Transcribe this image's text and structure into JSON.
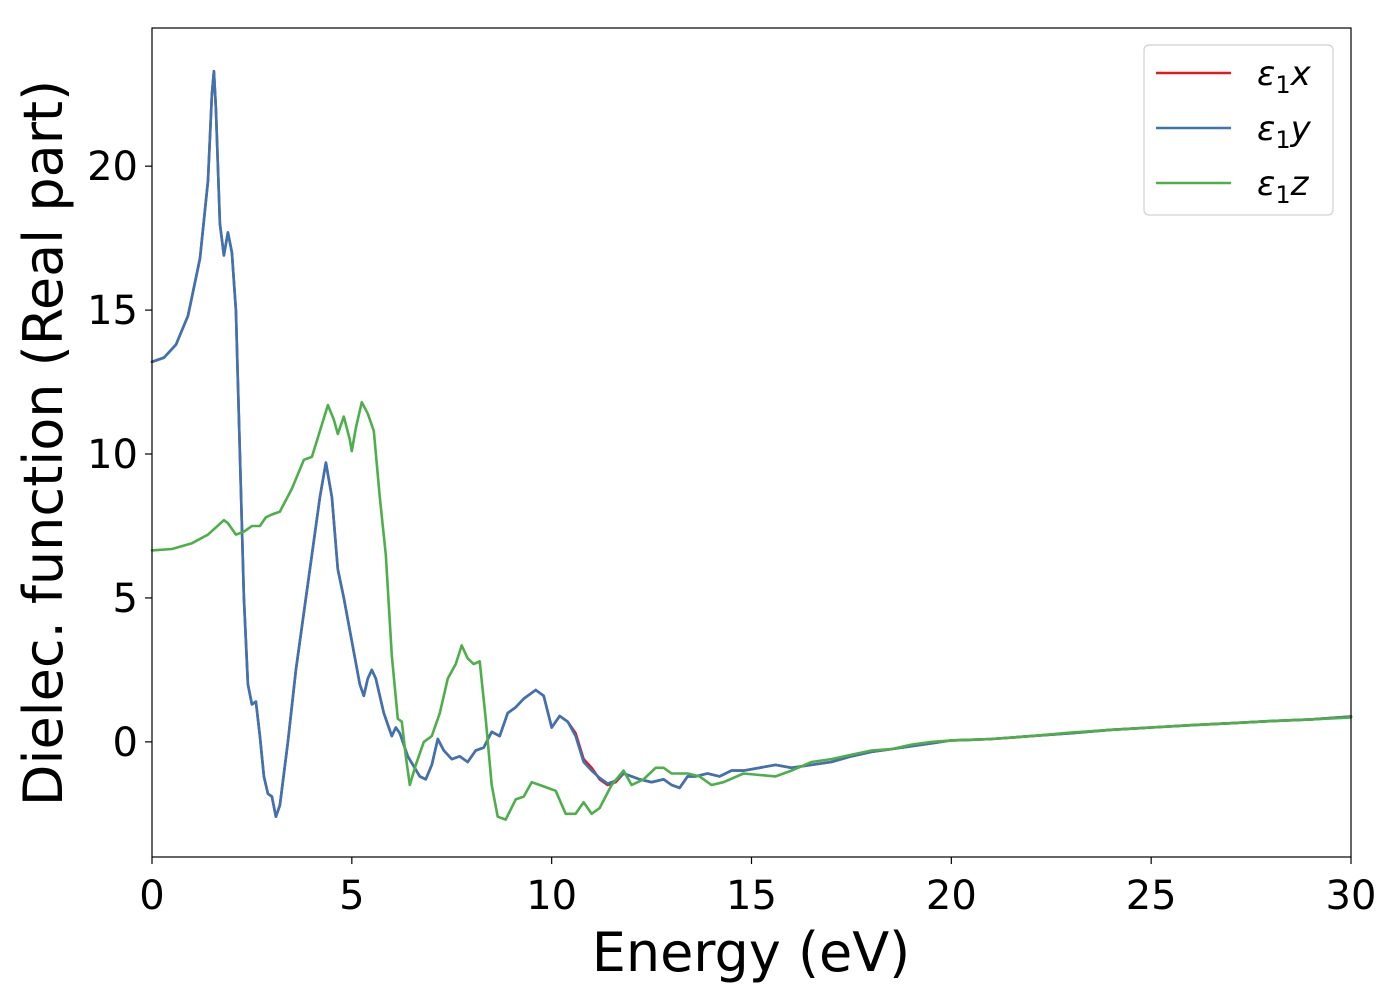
{
  "chart_data": {
    "type": "line",
    "xlabel": "Energy (eV)",
    "ylabel": "Dielec. function (Real part)",
    "xlim": [
      0,
      30
    ],
    "ylim": [
      -4,
      24.8
    ],
    "xticks": [
      0,
      5,
      10,
      15,
      20,
      25,
      30
    ],
    "xtick_labels": [
      "0",
      "5",
      "10",
      "15",
      "20",
      "25",
      "30"
    ],
    "yticks": [
      0,
      5,
      10,
      15,
      20
    ],
    "ytick_labels": [
      "0",
      "5",
      "10",
      "15",
      "20"
    ],
    "grid": false,
    "legend_position": "top-right",
    "series": [
      {
        "name": "ε1x",
        "color": "#e41a1c",
        "points": [
          [
            0,
            13.2
          ],
          [
            0.3,
            13.35
          ],
          [
            0.6,
            13.8
          ],
          [
            0.9,
            14.8
          ],
          [
            1.2,
            16.8
          ],
          [
            1.4,
            19.5
          ],
          [
            1.5,
            22.5
          ],
          [
            1.55,
            23.3
          ],
          [
            1.6,
            22.0
          ],
          [
            1.7,
            18.0
          ],
          [
            1.8,
            16.9
          ],
          [
            1.9,
            17.7
          ],
          [
            2.0,
            17.0
          ],
          [
            2.1,
            15.0
          ],
          [
            2.2,
            10.0
          ],
          [
            2.3,
            5.0
          ],
          [
            2.4,
            2.0
          ],
          [
            2.5,
            1.3
          ],
          [
            2.6,
            1.4
          ],
          [
            2.7,
            0.2
          ],
          [
            2.8,
            -1.2
          ],
          [
            2.9,
            -1.8
          ],
          [
            3.0,
            -1.9
          ],
          [
            3.1,
            -2.6
          ],
          [
            3.2,
            -2.2
          ],
          [
            3.4,
            0.0
          ],
          [
            3.6,
            2.5
          ],
          [
            3.8,
            4.5
          ],
          [
            4.0,
            6.5
          ],
          [
            4.2,
            8.5
          ],
          [
            4.35,
            9.7
          ],
          [
            4.5,
            8.5
          ],
          [
            4.65,
            6.0
          ],
          [
            4.8,
            5.0
          ],
          [
            5.0,
            3.5
          ],
          [
            5.2,
            2.0
          ],
          [
            5.3,
            1.6
          ],
          [
            5.4,
            2.2
          ],
          [
            5.5,
            2.5
          ],
          [
            5.6,
            2.2
          ],
          [
            5.8,
            1.0
          ],
          [
            6.0,
            0.2
          ],
          [
            6.1,
            0.5
          ],
          [
            6.2,
            0.3
          ],
          [
            6.4,
            -0.5
          ],
          [
            6.7,
            -1.2
          ],
          [
            6.85,
            -1.3
          ],
          [
            7.0,
            -0.8
          ],
          [
            7.15,
            0.1
          ],
          [
            7.3,
            -0.3
          ],
          [
            7.5,
            -0.6
          ],
          [
            7.7,
            -0.5
          ],
          [
            7.9,
            -0.7
          ],
          [
            8.1,
            -0.3
          ],
          [
            8.3,
            -0.2
          ],
          [
            8.5,
            0.35
          ],
          [
            8.7,
            0.2
          ],
          [
            8.9,
            1.0
          ],
          [
            9.1,
            1.2
          ],
          [
            9.3,
            1.5
          ],
          [
            9.6,
            1.8
          ],
          [
            9.8,
            1.6
          ],
          [
            10.0,
            0.5
          ],
          [
            10.2,
            0.9
          ],
          [
            10.4,
            0.7
          ],
          [
            10.6,
            0.3
          ],
          [
            10.8,
            -0.6
          ],
          [
            11.0,
            -0.9
          ],
          [
            11.2,
            -1.3
          ],
          [
            11.4,
            -1.5
          ],
          [
            11.6,
            -1.4
          ],
          [
            11.8,
            -1.1
          ],
          [
            12.0,
            -1.2
          ],
          [
            12.2,
            -1.3
          ],
          [
            12.5,
            -1.4
          ],
          [
            12.8,
            -1.3
          ],
          [
            13.0,
            -1.5
          ],
          [
            13.2,
            -1.6
          ],
          [
            13.4,
            -1.2
          ],
          [
            13.6,
            -1.2
          ],
          [
            13.9,
            -1.1
          ],
          [
            14.2,
            -1.2
          ],
          [
            14.5,
            -1.0
          ],
          [
            14.8,
            -1.0
          ],
          [
            15.2,
            -0.9
          ],
          [
            15.6,
            -0.8
          ],
          [
            16.0,
            -0.9
          ],
          [
            16.5,
            -0.8
          ],
          [
            17.0,
            -0.7
          ],
          [
            17.5,
            -0.5
          ],
          [
            18.0,
            -0.35
          ],
          [
            18.5,
            -0.25
          ],
          [
            19.0,
            -0.15
          ],
          [
            19.5,
            -0.05
          ],
          [
            20.0,
            0.05
          ],
          [
            20.5,
            0.07
          ],
          [
            21.0,
            0.1
          ],
          [
            22.0,
            0.2
          ],
          [
            23.0,
            0.3
          ],
          [
            24.0,
            0.42
          ],
          [
            25.0,
            0.5
          ],
          [
            26.0,
            0.58
          ],
          [
            27.0,
            0.65
          ],
          [
            28.0,
            0.72
          ],
          [
            29.0,
            0.78
          ],
          [
            30.0,
            0.88
          ]
        ]
      },
      {
        "name": "ε1y",
        "color": "#3a74b4",
        "points": [
          [
            0,
            13.2
          ],
          [
            0.3,
            13.35
          ],
          [
            0.6,
            13.8
          ],
          [
            0.9,
            14.8
          ],
          [
            1.2,
            16.8
          ],
          [
            1.4,
            19.5
          ],
          [
            1.5,
            22.5
          ],
          [
            1.55,
            23.3
          ],
          [
            1.6,
            22.0
          ],
          [
            1.7,
            18.0
          ],
          [
            1.8,
            16.9
          ],
          [
            1.9,
            17.7
          ],
          [
            2.0,
            17.0
          ],
          [
            2.1,
            15.0
          ],
          [
            2.2,
            10.0
          ],
          [
            2.3,
            5.0
          ],
          [
            2.4,
            2.0
          ],
          [
            2.5,
            1.3
          ],
          [
            2.6,
            1.4
          ],
          [
            2.7,
            0.2
          ],
          [
            2.8,
            -1.2
          ],
          [
            2.9,
            -1.8
          ],
          [
            3.0,
            -1.9
          ],
          [
            3.1,
            -2.6
          ],
          [
            3.2,
            -2.2
          ],
          [
            3.4,
            0.0
          ],
          [
            3.6,
            2.5
          ],
          [
            3.8,
            4.5
          ],
          [
            4.0,
            6.5
          ],
          [
            4.2,
            8.5
          ],
          [
            4.35,
            9.7
          ],
          [
            4.5,
            8.5
          ],
          [
            4.65,
            6.0
          ],
          [
            4.8,
            5.0
          ],
          [
            5.0,
            3.5
          ],
          [
            5.2,
            2.0
          ],
          [
            5.3,
            1.6
          ],
          [
            5.4,
            2.2
          ],
          [
            5.5,
            2.5
          ],
          [
            5.6,
            2.2
          ],
          [
            5.8,
            1.0
          ],
          [
            6.0,
            0.2
          ],
          [
            6.1,
            0.5
          ],
          [
            6.2,
            0.3
          ],
          [
            6.4,
            -0.5
          ],
          [
            6.7,
            -1.2
          ],
          [
            6.85,
            -1.3
          ],
          [
            7.0,
            -0.8
          ],
          [
            7.15,
            0.1
          ],
          [
            7.3,
            -0.3
          ],
          [
            7.5,
            -0.6
          ],
          [
            7.7,
            -0.5
          ],
          [
            7.9,
            -0.7
          ],
          [
            8.1,
            -0.3
          ],
          [
            8.3,
            -0.2
          ],
          [
            8.5,
            0.35
          ],
          [
            8.7,
            0.2
          ],
          [
            8.9,
            1.0
          ],
          [
            9.1,
            1.2
          ],
          [
            9.3,
            1.5
          ],
          [
            9.6,
            1.8
          ],
          [
            9.8,
            1.6
          ],
          [
            10.0,
            0.5
          ],
          [
            10.2,
            0.9
          ],
          [
            10.4,
            0.7
          ],
          [
            10.6,
            0.2
          ],
          [
            10.8,
            -0.7
          ],
          [
            11.0,
            -1.0
          ],
          [
            11.2,
            -1.25
          ],
          [
            11.4,
            -1.45
          ],
          [
            11.6,
            -1.35
          ],
          [
            11.8,
            -1.1
          ],
          [
            12.0,
            -1.2
          ],
          [
            12.2,
            -1.3
          ],
          [
            12.5,
            -1.4
          ],
          [
            12.8,
            -1.3
          ],
          [
            13.0,
            -1.5
          ],
          [
            13.2,
            -1.6
          ],
          [
            13.4,
            -1.2
          ],
          [
            13.6,
            -1.2
          ],
          [
            13.9,
            -1.1
          ],
          [
            14.2,
            -1.2
          ],
          [
            14.5,
            -1.0
          ],
          [
            14.8,
            -1.0
          ],
          [
            15.2,
            -0.9
          ],
          [
            15.6,
            -0.8
          ],
          [
            16.0,
            -0.9
          ],
          [
            16.5,
            -0.8
          ],
          [
            17.0,
            -0.7
          ],
          [
            17.5,
            -0.5
          ],
          [
            18.0,
            -0.35
          ],
          [
            18.5,
            -0.25
          ],
          [
            19.0,
            -0.15
          ],
          [
            19.5,
            -0.05
          ],
          [
            20.0,
            0.05
          ],
          [
            20.5,
            0.07
          ],
          [
            21.0,
            0.1
          ],
          [
            22.0,
            0.2
          ],
          [
            23.0,
            0.3
          ],
          [
            24.0,
            0.42
          ],
          [
            25.0,
            0.5
          ],
          [
            26.0,
            0.58
          ],
          [
            27.0,
            0.65
          ],
          [
            28.0,
            0.72
          ],
          [
            29.0,
            0.78
          ],
          [
            30.0,
            0.88
          ]
        ]
      },
      {
        "name": "ε1z",
        "color": "#4daf4a",
        "points": [
          [
            0,
            6.65
          ],
          [
            0.5,
            6.7
          ],
          [
            1.0,
            6.9
          ],
          [
            1.4,
            7.2
          ],
          [
            1.6,
            7.45
          ],
          [
            1.8,
            7.7
          ],
          [
            1.9,
            7.6
          ],
          [
            2.1,
            7.2
          ],
          [
            2.3,
            7.3
          ],
          [
            2.5,
            7.5
          ],
          [
            2.7,
            7.5
          ],
          [
            2.85,
            7.8
          ],
          [
            3.0,
            7.9
          ],
          [
            3.2,
            8.0
          ],
          [
            3.5,
            8.8
          ],
          [
            3.8,
            9.8
          ],
          [
            4.0,
            9.9
          ],
          [
            4.2,
            10.8
          ],
          [
            4.4,
            11.7
          ],
          [
            4.55,
            11.2
          ],
          [
            4.65,
            10.7
          ],
          [
            4.8,
            11.3
          ],
          [
            4.95,
            10.5
          ],
          [
            5.0,
            10.1
          ],
          [
            5.1,
            10.9
          ],
          [
            5.25,
            11.8
          ],
          [
            5.4,
            11.4
          ],
          [
            5.55,
            10.8
          ],
          [
            5.7,
            8.5
          ],
          [
            5.85,
            6.5
          ],
          [
            6.0,
            3.0
          ],
          [
            6.15,
            0.8
          ],
          [
            6.25,
            0.7
          ],
          [
            6.35,
            -0.5
          ],
          [
            6.45,
            -1.5
          ],
          [
            6.6,
            -0.8
          ],
          [
            6.8,
            0.0
          ],
          [
            7.0,
            0.2
          ],
          [
            7.2,
            1.0
          ],
          [
            7.4,
            2.2
          ],
          [
            7.6,
            2.7
          ],
          [
            7.75,
            3.35
          ],
          [
            7.9,
            2.9
          ],
          [
            8.05,
            2.7
          ],
          [
            8.2,
            2.8
          ],
          [
            8.35,
            0.8
          ],
          [
            8.5,
            -1.5
          ],
          [
            8.65,
            -2.6
          ],
          [
            8.85,
            -2.7
          ],
          [
            9.1,
            -2.0
          ],
          [
            9.3,
            -1.9
          ],
          [
            9.5,
            -1.4
          ],
          [
            9.7,
            -1.5
          ],
          [
            9.9,
            -1.6
          ],
          [
            10.1,
            -1.7
          ],
          [
            10.35,
            -2.5
          ],
          [
            10.6,
            -2.5
          ],
          [
            10.8,
            -2.1
          ],
          [
            11.0,
            -2.5
          ],
          [
            11.2,
            -2.3
          ],
          [
            11.5,
            -1.5
          ],
          [
            11.8,
            -1.0
          ],
          [
            12.0,
            -1.5
          ],
          [
            12.3,
            -1.3
          ],
          [
            12.6,
            -0.9
          ],
          [
            12.8,
            -0.9
          ],
          [
            13.0,
            -1.1
          ],
          [
            13.4,
            -1.1
          ],
          [
            13.7,
            -1.2
          ],
          [
            14.0,
            -1.5
          ],
          [
            14.3,
            -1.4
          ],
          [
            14.8,
            -1.1
          ],
          [
            15.2,
            -1.15
          ],
          [
            15.6,
            -1.2
          ],
          [
            16.0,
            -1.0
          ],
          [
            16.5,
            -0.7
          ],
          [
            17.0,
            -0.6
          ],
          [
            17.5,
            -0.45
          ],
          [
            18.0,
            -0.3
          ],
          [
            18.5,
            -0.25
          ],
          [
            19.0,
            -0.1
          ],
          [
            19.5,
            0.0
          ],
          [
            20.0,
            0.05
          ],
          [
            21.0,
            0.1
          ],
          [
            22.0,
            0.2
          ],
          [
            23.0,
            0.32
          ],
          [
            24.0,
            0.42
          ],
          [
            25.0,
            0.5
          ],
          [
            26.0,
            0.58
          ],
          [
            27.0,
            0.65
          ],
          [
            28.0,
            0.72
          ],
          [
            29.0,
            0.78
          ],
          [
            30.0,
            0.85
          ]
        ]
      }
    ]
  },
  "legend": {
    "items": [
      {
        "symbol": "ε",
        "sub": "1",
        "var": "x"
      },
      {
        "symbol": "ε",
        "sub": "1",
        "var": "y"
      },
      {
        "symbol": "ε",
        "sub": "1",
        "var": "z"
      }
    ]
  }
}
